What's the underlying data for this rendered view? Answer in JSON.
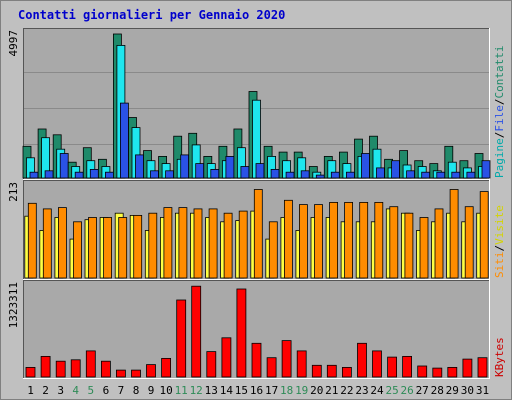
{
  "chart_data": [
    {
      "type": "bar",
      "title": "Contatti giornalieri per Gennaio 2020",
      "panel": "top",
      "y_max_label": "4997",
      "ylim": [
        0,
        4997
      ],
      "ylabel_parts": [
        "Pagine",
        "/",
        "File",
        "/",
        "Contatti"
      ],
      "categories": [
        "1",
        "2",
        "3",
        "4",
        "5",
        "6",
        "7",
        "8",
        "9",
        "10",
        "11",
        "12",
        "13",
        "14",
        "15",
        "16",
        "17",
        "18",
        "19",
        "20",
        "21",
        "22",
        "23",
        "24",
        "25",
        "26",
        "27",
        "28",
        "29",
        "30",
        "31"
      ],
      "weekend_days": [
        "4",
        "5",
        "11",
        "12",
        "18",
        "19",
        "25",
        "26"
      ],
      "series": [
        {
          "name": "Contatti",
          "values": [
            1100,
            1700,
            1500,
            550,
            1050,
            650,
            4997,
            2100,
            950,
            750,
            1450,
            1550,
            750,
            1100,
            1700,
            3000,
            1100,
            900,
            900,
            400,
            750,
            900,
            1350,
            1450,
            650,
            950,
            600,
            500,
            1100,
            600,
            850
          ]
        },
        {
          "name": "File",
          "values": [
            700,
            1400,
            1000,
            400,
            600,
            400,
            4600,
            1750,
            600,
            500,
            650,
            1150,
            500,
            600,
            1050,
            2700,
            750,
            600,
            700,
            200,
            600,
            500,
            750,
            1000,
            350,
            450,
            400,
            250,
            550,
            350,
            400
          ]
        },
        {
          "name": "Pagine",
          "values": [
            200,
            250,
            850,
            200,
            300,
            200,
            2600,
            800,
            250,
            250,
            800,
            500,
            300,
            750,
            400,
            500,
            300,
            200,
            250,
            100,
            200,
            200,
            850,
            350,
            600,
            250,
            200,
            200,
            200,
            200,
            600
          ]
        }
      ]
    },
    {
      "type": "bar",
      "panel": "middle",
      "y_max_label": "213",
      "ylim": [
        0,
        213
      ],
      "ylabel_parts": [
        "Siti",
        "/",
        "Visite"
      ],
      "series": [
        {
          "name": "Visite",
          "values": [
            143,
            110,
            140,
            90,
            135,
            140,
            150,
            145,
            110,
            140,
            150,
            150,
            140,
            130,
            133,
            155,
            90,
            140,
            110,
            140,
            140,
            130,
            130,
            130,
            160,
            150,
            110,
            130,
            150,
            130,
            150
          ]
        },
        {
          "name": "Siti",
          "values": [
            173,
            160,
            163,
            130,
            140,
            140,
            140,
            145,
            150,
            163,
            163,
            160,
            160,
            150,
            155,
            205,
            130,
            180,
            170,
            170,
            175,
            175,
            175,
            175,
            165,
            150,
            140,
            160,
            205,
            165,
            200
          ]
        }
      ]
    },
    {
      "type": "bar",
      "panel": "bottom",
      "y_max_label": "1323311",
      "ylim": [
        0,
        1323311
      ],
      "ylabel_parts": [
        "KBytes"
      ],
      "series": [
        {
          "name": "KBytes",
          "values": [
            140000,
            300000,
            230000,
            250000,
            380000,
            230000,
            100000,
            100000,
            180000,
            270000,
            1120000,
            1320000,
            370000,
            570000,
            1280000,
            490000,
            280000,
            530000,
            380000,
            170000,
            170000,
            140000,
            490000,
            380000,
            290000,
            300000,
            160000,
            130000,
            140000,
            260000,
            280000
          ]
        }
      ]
    }
  ],
  "colors": {
    "background": "#c0c0c0",
    "plot_bg": "#a9a9a9",
    "title": "#0000cc",
    "axis_text": "#000000",
    "weekend_text": "#2e8b57",
    "contatti": "#1f8a6a",
    "file": "#1ee6ee",
    "pagine": "#2a52e6",
    "siti": "#ff8c00",
    "visite": "#ffff44",
    "kbytes": "#ff0000",
    "label_pagine": "#00aaaa",
    "label_file": "#2a52e6",
    "label_contatti": "#1f8a6a",
    "label_siti": "#ff8c00",
    "label_visite": "#d4d400",
    "label_kbytes": "#cc0000",
    "label_slash": "#000000"
  }
}
